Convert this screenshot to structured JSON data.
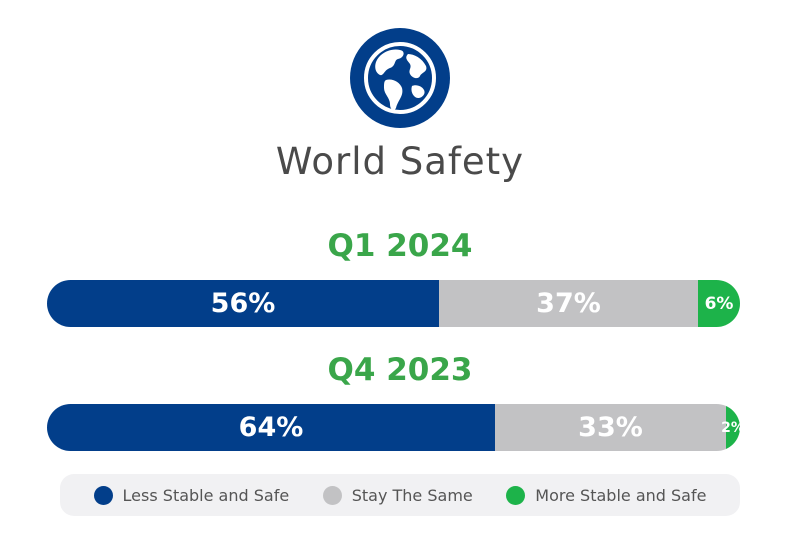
{
  "icon": "globe-icon",
  "colors": {
    "primary": "#023e8a",
    "neutral": "#c2c2c4",
    "accent": "#1db34a",
    "heading": "#3aa64a",
    "title": "#4a4a4a"
  },
  "chart_data": {
    "type": "bar",
    "orientation": "horizontal",
    "stacked": true,
    "title": "World Safety",
    "categories": [
      "Q1 2024",
      "Q4 2023"
    ],
    "series": [
      {
        "name": "Less Stable and Safe",
        "color": "#023e8a",
        "values": [
          56,
          64
        ],
        "labels": [
          "56%",
          "64%"
        ]
      },
      {
        "name": "Stay The Same",
        "color": "#c2c2c4",
        "values": [
          37,
          33
        ],
        "labels": [
          "37%",
          "33%"
        ]
      },
      {
        "name": "More Stable and Safe",
        "color": "#1db34a",
        "values": [
          6,
          2
        ],
        "labels": [
          "6%",
          "2%"
        ]
      }
    ],
    "legend": "bottom"
  }
}
